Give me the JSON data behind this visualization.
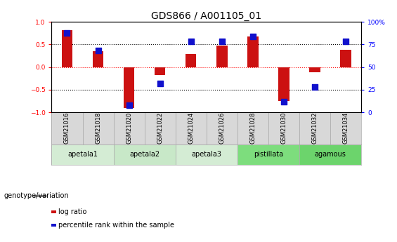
{
  "title": "GDS866 / A001105_01",
  "samples": [
    "GSM21016",
    "GSM21018",
    "GSM21020",
    "GSM21022",
    "GSM21024",
    "GSM21026",
    "GSM21028",
    "GSM21030",
    "GSM21032",
    "GSM21034"
  ],
  "log_ratio": [
    0.82,
    0.35,
    -0.9,
    -0.18,
    0.28,
    0.48,
    0.68,
    -0.75,
    -0.12,
    0.38
  ],
  "percentile_rank": [
    88,
    68,
    8,
    32,
    78,
    78,
    84,
    12,
    28,
    78
  ],
  "genotype_groups": [
    {
      "label": "apetala1",
      "start": 0,
      "end": 2,
      "color": "#d4ecd4"
    },
    {
      "label": "apetala2",
      "start": 2,
      "end": 4,
      "color": "#c8e8c8"
    },
    {
      "label": "apetala3",
      "start": 4,
      "end": 6,
      "color": "#d4ecd4"
    },
    {
      "label": "pistillata",
      "start": 6,
      "end": 8,
      "color": "#7ddd7d"
    },
    {
      "label": "agamous",
      "start": 8,
      "end": 10,
      "color": "#6cd46c"
    }
  ],
  "bar_color": "#cc1111",
  "dot_color": "#1111cc",
  "ylim_left": [
    -1,
    1
  ],
  "ylim_right": [
    0,
    100
  ],
  "yticks_left": [
    -1,
    -0.5,
    0,
    0.5,
    1
  ],
  "yticks_right": [
    0,
    25,
    50,
    75,
    100
  ],
  "bar_width": 0.35,
  "dot_size": 40,
  "sample_box_color": "#d8d8d8",
  "sample_box_edge": "#aaaaaa",
  "legend_items": [
    {
      "label": "log ratio",
      "color": "#cc1111"
    },
    {
      "label": "percentile rank within the sample",
      "color": "#1111cc"
    }
  ],
  "genotype_label": "genotype/variation",
  "title_fontsize": 10,
  "tick_fontsize": 6.5,
  "label_fontsize": 7
}
